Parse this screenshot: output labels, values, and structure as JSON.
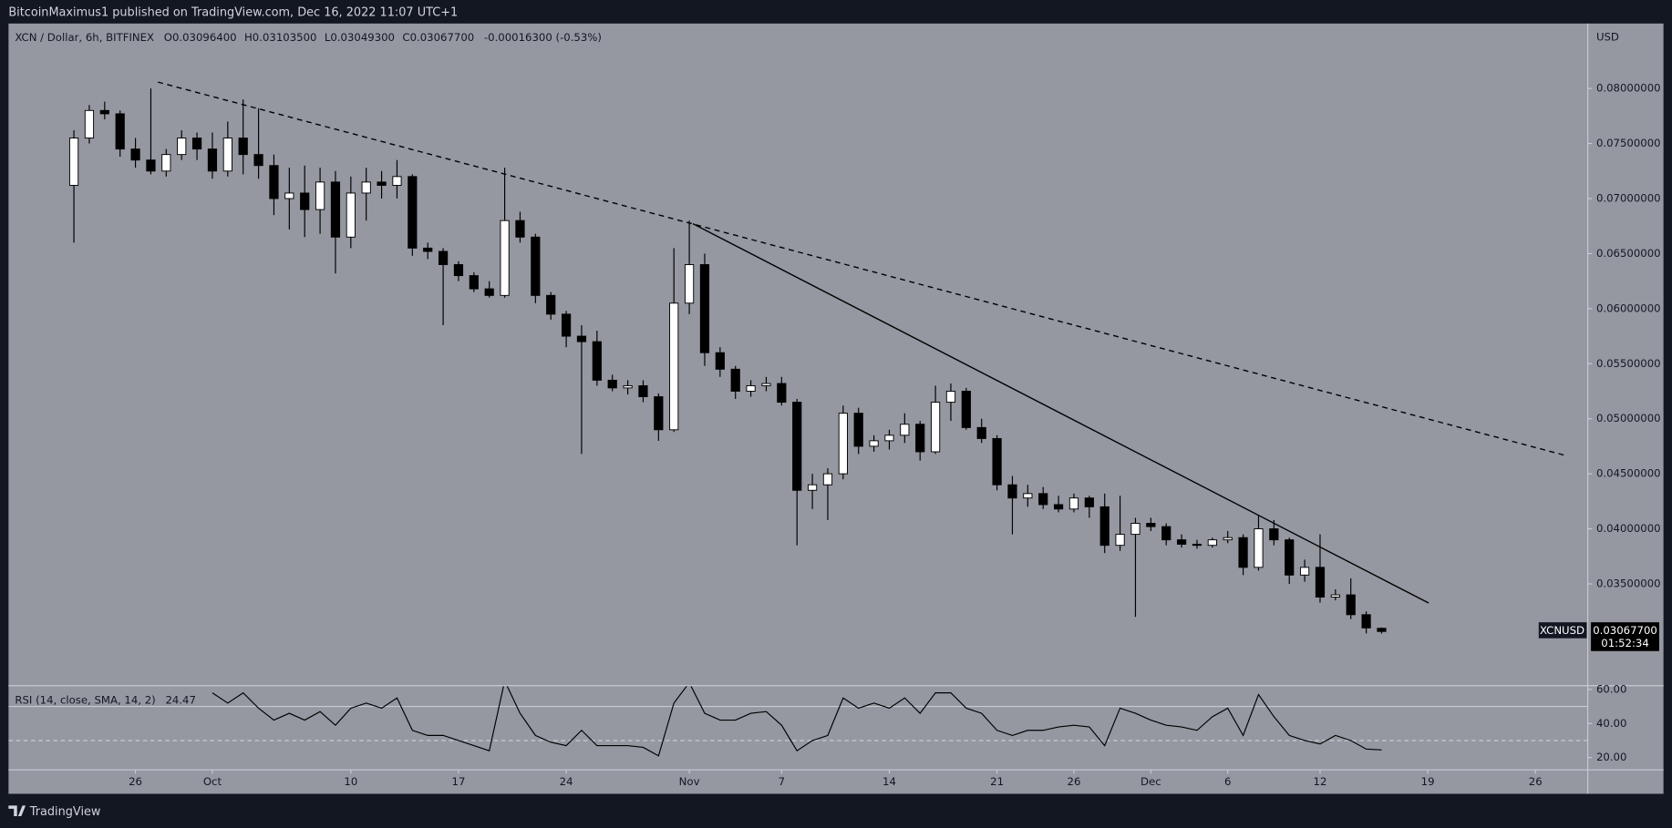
{
  "header": {
    "publisher_line": "BitcoinMaximus1 published on TradingView.com, Dec 16, 2022 11:07 UTC+1"
  },
  "legend": {
    "ohlc": [
      {
        "key": "O",
        "value": "0.03096400"
      },
      {
        "key": "H",
        "value": "0.03103500"
      },
      {
        "key": "L",
        "value": "0.03049300"
      },
      {
        "key": "C",
        "value": "0.03067700"
      }
    ],
    "change": "-0.00016300 (-0.53%)"
  },
  "price_tag": {
    "symbol": "XCNUSD",
    "price": "0.03067700",
    "countdown": "01:52:34"
  },
  "footer": {
    "brand": "TradingView"
  },
  "chart_data": {
    "type": "candlestick",
    "title": "XCN / Dollar, 6h, BITFINEX",
    "y_unit": "USD",
    "up_color": "#ffffff",
    "down_color": "#000000",
    "wick_color": "#000000",
    "grid": false,
    "x": [
      0,
      1,
      2,
      3,
      4,
      5,
      6,
      7,
      8,
      9,
      10,
      11,
      12,
      13,
      14,
      15,
      16,
      17,
      18,
      19,
      20,
      21,
      22,
      23,
      24,
      25,
      26,
      27,
      28,
      29,
      30,
      31,
      32,
      33,
      34,
      35,
      36,
      37,
      38,
      39,
      40,
      41,
      42,
      43,
      44,
      45,
      46,
      47,
      48,
      49,
      50,
      51,
      52,
      53,
      54,
      55,
      56,
      57,
      58,
      59,
      60,
      61,
      62,
      63,
      64,
      65,
      66,
      67,
      68,
      69,
      70,
      71,
      72,
      73,
      74,
      75,
      76,
      77,
      78,
      79,
      80,
      81,
      82,
      83,
      84,
      85
    ],
    "open": [
      0.0712,
      0.0755,
      0.078,
      0.0777,
      0.0745,
      0.0735,
      0.0725,
      0.074,
      0.0755,
      0.0745,
      0.0725,
      0.0755,
      0.074,
      0.073,
      0.07,
      0.0705,
      0.069,
      0.0715,
      0.0665,
      0.0705,
      0.0715,
      0.0712,
      0.072,
      0.0655,
      0.0652,
      0.064,
      0.063,
      0.0618,
      0.0612,
      0.068,
      0.0665,
      0.0612,
      0.0595,
      0.0575,
      0.057,
      0.0535,
      0.0528,
      0.053,
      0.052,
      0.049,
      0.0605,
      0.064,
      0.056,
      0.0545,
      0.0525,
      0.053,
      0.0532,
      0.0515,
      0.0435,
      0.044,
      0.045,
      0.0505,
      0.0475,
      0.048,
      0.0485,
      0.0495,
      0.047,
      0.0515,
      0.0525,
      0.0492,
      0.0482,
      0.044,
      0.0428,
      0.0432,
      0.0422,
      0.0418,
      0.0428,
      0.042,
      0.0385,
      0.0395,
      0.0405,
      0.0402,
      0.039,
      0.0386,
      0.0385,
      0.039,
      0.0392,
      0.0365,
      0.04,
      0.039,
      0.0358,
      0.0365,
      0.0338,
      0.034,
      0.0322,
      0.030964
    ],
    "high": [
      0.0762,
      0.0785,
      0.0788,
      0.078,
      0.0755,
      0.08,
      0.0745,
      0.0762,
      0.076,
      0.076,
      0.077,
      0.079,
      0.0782,
      0.074,
      0.0728,
      0.073,
      0.0728,
      0.0725,
      0.072,
      0.0728,
      0.0725,
      0.0735,
      0.0722,
      0.066,
      0.0655,
      0.0643,
      0.0633,
      0.0625,
      0.0728,
      0.0688,
      0.0668,
      0.0615,
      0.0598,
      0.0585,
      0.058,
      0.054,
      0.0535,
      0.0535,
      0.0523,
      0.0655,
      0.068,
      0.065,
      0.0565,
      0.0548,
      0.0535,
      0.0538,
      0.0538,
      0.0518,
      0.045,
      0.0455,
      0.0512,
      0.051,
      0.0485,
      0.049,
      0.0505,
      0.0498,
      0.053,
      0.0532,
      0.0528,
      0.05,
      0.0485,
      0.0448,
      0.044,
      0.0438,
      0.043,
      0.0432,
      0.043,
      0.0432,
      0.043,
      0.041,
      0.041,
      0.0405,
      0.0395,
      0.039,
      0.0392,
      0.0398,
      0.0395,
      0.0412,
      0.0408,
      0.0392,
      0.0372,
      0.0395,
      0.0345,
      0.0355,
      0.0325,
      0.031035
    ],
    "low": [
      0.066,
      0.075,
      0.0772,
      0.0738,
      0.0728,
      0.0722,
      0.072,
      0.0735,
      0.0735,
      0.0718,
      0.072,
      0.0722,
      0.0718,
      0.0685,
      0.0672,
      0.0665,
      0.0668,
      0.0632,
      0.0655,
      0.068,
      0.07,
      0.07,
      0.0648,
      0.0645,
      0.0585,
      0.0625,
      0.0615,
      0.061,
      0.061,
      0.066,
      0.0605,
      0.059,
      0.0565,
      0.0468,
      0.053,
      0.0525,
      0.0522,
      0.0515,
      0.048,
      0.0488,
      0.0595,
      0.0548,
      0.0538,
      0.0518,
      0.052,
      0.0525,
      0.0512,
      0.0385,
      0.0418,
      0.0408,
      0.0445,
      0.0468,
      0.047,
      0.0472,
      0.0478,
      0.0462,
      0.0468,
      0.0498,
      0.049,
      0.0478,
      0.0435,
      0.0395,
      0.042,
      0.0418,
      0.0415,
      0.0415,
      0.041,
      0.0378,
      0.038,
      0.032,
      0.0398,
      0.0385,
      0.0383,
      0.0382,
      0.0383,
      0.0387,
      0.0358,
      0.0362,
      0.0385,
      0.035,
      0.0352,
      0.0333,
      0.0335,
      0.0318,
      0.0305,
      0.030493
    ],
    "close": [
      0.0755,
      0.078,
      0.0777,
      0.0745,
      0.0735,
      0.0725,
      0.074,
      0.0755,
      0.0745,
      0.0725,
      0.0755,
      0.074,
      0.073,
      0.07,
      0.0705,
      0.069,
      0.0715,
      0.0665,
      0.0705,
      0.0715,
      0.0712,
      0.072,
      0.0655,
      0.0652,
      0.064,
      0.063,
      0.0618,
      0.0612,
      0.068,
      0.0665,
      0.0612,
      0.0595,
      0.0575,
      0.057,
      0.0535,
      0.0528,
      0.053,
      0.052,
      0.049,
      0.0605,
      0.064,
      0.056,
      0.0545,
      0.0525,
      0.053,
      0.0532,
      0.0515,
      0.0435,
      0.044,
      0.045,
      0.0505,
      0.0475,
      0.048,
      0.0485,
      0.0495,
      0.047,
      0.0515,
      0.0525,
      0.0492,
      0.0482,
      0.044,
      0.0428,
      0.0432,
      0.0422,
      0.0418,
      0.0428,
      0.042,
      0.0385,
      0.0395,
      0.0405,
      0.0402,
      0.039,
      0.0386,
      0.0385,
      0.039,
      0.0392,
      0.0365,
      0.04,
      0.039,
      0.0358,
      0.0365,
      0.0338,
      0.034,
      0.0322,
      0.031,
      0.030677
    ],
    "xlim": [
      -4.25,
      98.4
    ],
    "xticks": [
      {
        "value": 4,
        "label": "26"
      },
      {
        "value": 9,
        "label": "Oct"
      },
      {
        "value": 18,
        "label": "10"
      },
      {
        "value": 25,
        "label": "17"
      },
      {
        "value": 32,
        "label": "24"
      },
      {
        "value": 40,
        "label": "Nov"
      },
      {
        "value": 46,
        "label": "7"
      },
      {
        "value": 53,
        "label": "14"
      },
      {
        "value": 60,
        "label": "21"
      },
      {
        "value": 65,
        "label": "26"
      },
      {
        "value": 70,
        "label": "Dec"
      },
      {
        "value": 75,
        "label": "6"
      },
      {
        "value": 81,
        "label": "12"
      },
      {
        "value": 88,
        "label": "19"
      },
      {
        "value": 95,
        "label": "26"
      }
    ],
    "ylim": [
      0.0258,
      0.0859
    ],
    "yticks": [
      {
        "value": 0.035,
        "label": "0.03500000"
      },
      {
        "value": 0.04,
        "label": "0.04000000"
      },
      {
        "value": 0.045,
        "label": "0.04500000"
      },
      {
        "value": 0.05,
        "label": "0.05000000"
      },
      {
        "value": 0.055,
        "label": "0.05500000"
      },
      {
        "value": 0.06,
        "label": "0.06000000"
      },
      {
        "value": 0.065,
        "label": "0.06500000"
      },
      {
        "value": 0.07,
        "label": "0.07000000"
      },
      {
        "value": 0.075,
        "label": "0.07500000"
      },
      {
        "value": 0.08,
        "label": "0.08000000"
      }
    ],
    "trendlines": [
      {
        "style": "dashed",
        "color": "#000000",
        "x": [
          5.46,
          97.07
        ],
        "y": [
          0.08058,
          0.04662
        ]
      },
      {
        "style": "solid",
        "color": "#000000",
        "x": [
          40.24,
          88.06
        ],
        "y": [
          0.06771,
          0.03326
        ]
      }
    ],
    "rsi": {
      "label": "RSI (14, close, SMA, 14, 2)",
      "color": "#000000",
      "values": [
        null,
        null,
        null,
        null,
        null,
        null,
        null,
        null,
        null,
        58,
        52,
        58,
        49,
        42,
        46,
        42,
        47,
        39,
        49,
        52,
        49,
        55,
        36,
        33,
        33,
        30,
        27,
        24,
        65,
        46,
        33,
        29,
        27,
        36,
        27,
        27,
        27,
        26,
        21,
        52,
        64,
        46,
        42,
        42,
        46,
        47,
        39,
        24,
        30,
        33,
        55,
        49,
        52,
        49,
        55,
        46,
        58,
        58,
        49,
        46,
        36,
        33,
        36,
        36,
        38,
        39,
        38,
        27,
        49,
        46,
        42,
        39,
        38,
        36,
        44,
        49,
        33,
        57,
        44,
        33,
        30,
        28,
        33,
        30,
        25,
        24.47
      ],
      "ylim": [
        13.1,
        61.9
      ],
      "yticks": [
        {
          "value": 20,
          "label": "20.00"
        },
        {
          "value": 40,
          "label": "40.00"
        },
        {
          "value": 60,
          "label": "60.00"
        }
      ],
      "bands": [
        30,
        50
      ]
    }
  }
}
